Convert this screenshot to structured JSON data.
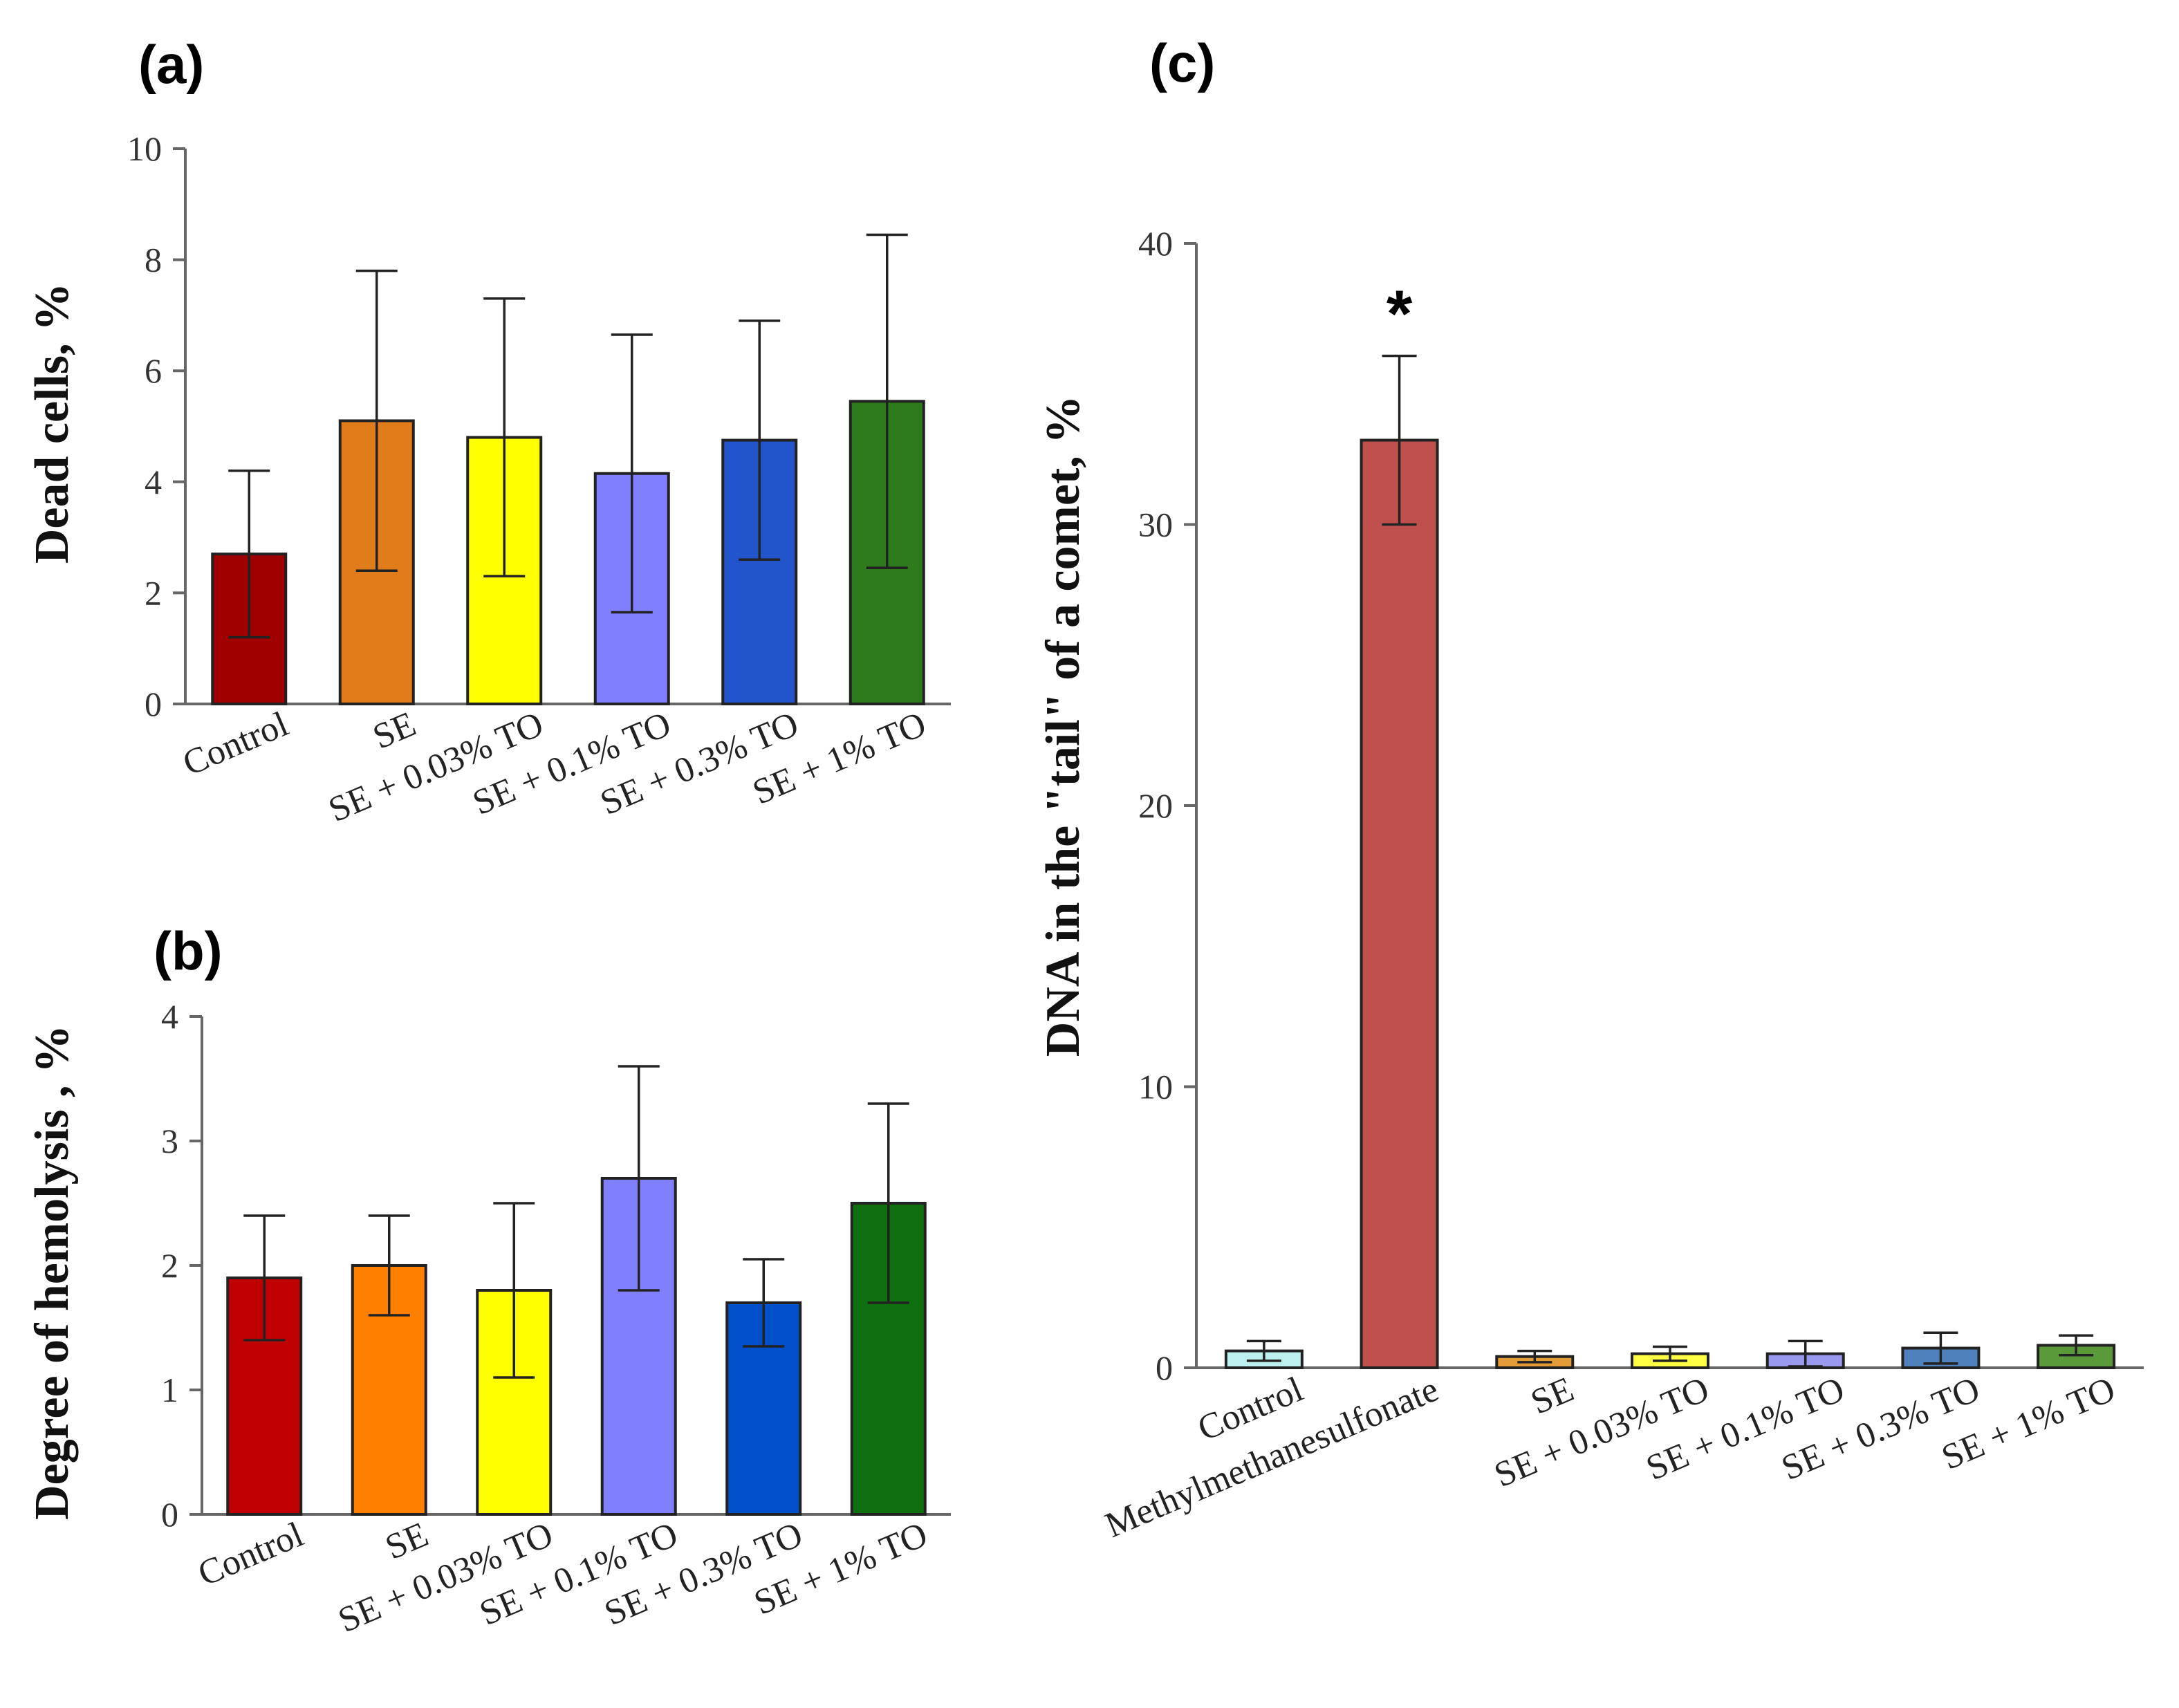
{
  "chart_data": [
    {
      "id": "a",
      "panel_label": "(a)",
      "type": "bar",
      "ylabel": "Dead cells, %",
      "ylim": [
        0,
        10
      ],
      "yticks": [
        0,
        2,
        4,
        6,
        8,
        10
      ],
      "yticks_labels": [
        "0",
        "2",
        "4",
        "6",
        "8",
        "10"
      ],
      "categories": [
        "Control",
        "SE",
        "SE + 0.03% TO",
        "SE + 0.1% TO",
        "SE + 0.3% TO",
        "SE + 1% TO"
      ],
      "values": [
        2.7,
        5.1,
        4.8,
        4.15,
        4.75,
        5.45
      ],
      "errors": [
        1.5,
        2.7,
        2.5,
        2.5,
        2.15,
        3.0
      ],
      "colors": [
        "#a00000",
        "#e07c1a",
        "#ffff00",
        "#8080ff",
        "#2255cc",
        "#2e7b1e"
      ]
    },
    {
      "id": "b",
      "panel_label": "(b)",
      "type": "bar",
      "ylabel": "Degree of hemolysis , %",
      "ylim": [
        0,
        4
      ],
      "yticks": [
        0,
        1,
        2,
        3,
        4
      ],
      "yticks_labels": [
        "0",
        "1",
        "2",
        "3",
        "4"
      ],
      "categories": [
        "Control",
        "SE",
        "SE + 0.03% TO",
        "SE + 0.1% TO",
        "SE + 0.3% TO",
        "SE + 1% TO"
      ],
      "values": [
        1.9,
        2.0,
        1.8,
        2.7,
        1.7,
        2.5
      ],
      "errors": [
        0.5,
        0.4,
        0.7,
        0.9,
        0.35,
        0.8
      ],
      "colors": [
        "#c00000",
        "#ff8000",
        "#ffff00",
        "#8080ff",
        "#0050cc",
        "#107010"
      ]
    },
    {
      "id": "c",
      "panel_label": "(c)",
      "type": "bar",
      "ylabel": "DNA in the \"tail\" of a comet, %",
      "ylim": [
        0,
        40
      ],
      "yticks": [
        0,
        10,
        20,
        30,
        40
      ],
      "yticks_labels": [
        "0",
        "10",
        "20",
        "30",
        "40"
      ],
      "categories": [
        "Control",
        "Methylmethanesulfonate",
        "SE",
        "SE + 0.03% TO",
        "SE + 0.1% TO",
        "SE + 0.3% TO",
        "SE + 1% TO"
      ],
      "values": [
        0.6,
        33.0,
        0.4,
        0.5,
        0.5,
        0.7,
        0.8
      ],
      "errors": [
        0.35,
        3.0,
        0.2,
        0.25,
        0.45,
        0.55,
        0.35
      ],
      "colors": [
        "#bff0f0",
        "#c0504d",
        "#e39b38",
        "#ffff44",
        "#9999ee",
        "#4f81bd",
        "#5a9a3a"
      ],
      "annotations": [
        {
          "category": "Methylmethanesulfonate",
          "text": "*"
        }
      ]
    }
  ]
}
